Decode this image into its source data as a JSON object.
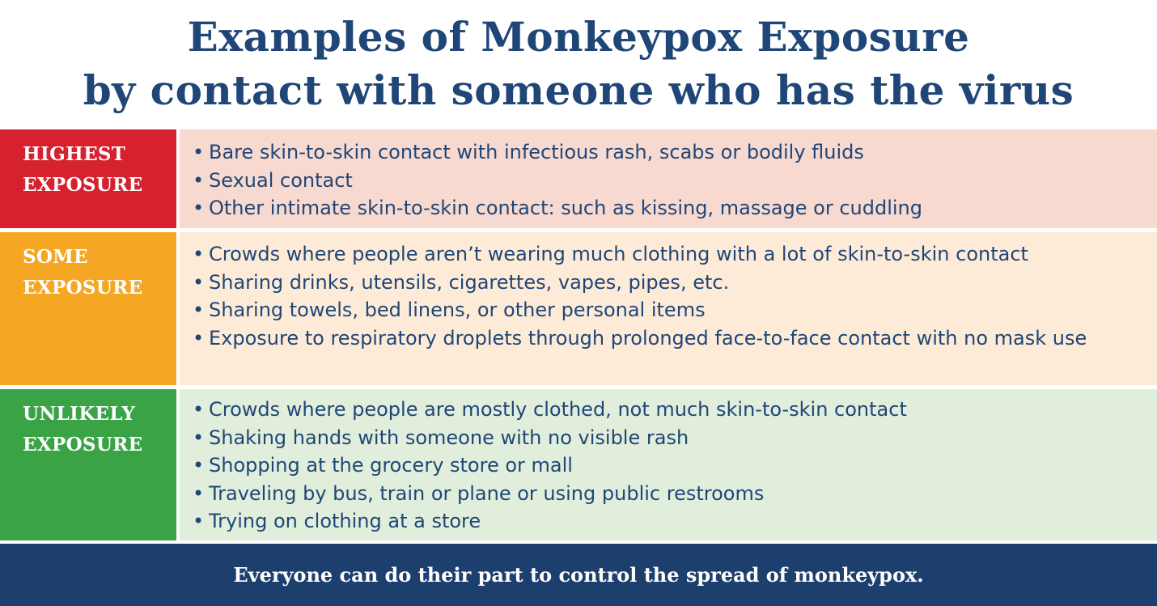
{
  "title": {
    "line1": "Examples of Monkeypox Exposure",
    "line2": "by contact with someone who has the virus"
  },
  "colors": {
    "title": "#1f4677",
    "highest_label": "#d6212f",
    "highest_body": "#f7d9cf",
    "some_label": "#f5a623",
    "some_body": "#fdebd7",
    "unlikely_label": "#3aa346",
    "unlikely_body": "#e1eedb",
    "footer": "#1d3f6e"
  },
  "rows": [
    {
      "label_line1": "HIGHEST",
      "label_line2": "EXPOSURE",
      "items": [
        "Bare skin-to-skin contact with infectious rash, scabs or bodily fluids",
        "Sexual contact",
        "Other intimate skin-to-skin contact: such as kissing, massage or cuddling"
      ]
    },
    {
      "label_line1": "SOME",
      "label_line2": "EXPOSURE",
      "items": [
        "Crowds where people aren’t wearing much clothing with a lot of skin-to-skin contact",
        "Sharing drinks, utensils, cigarettes, vapes, pipes, etc.",
        "Sharing towels, bed linens, or other personal items",
        "Exposure to respiratory droplets through prolonged face-to-face contact with no mask use"
      ]
    },
    {
      "label_line1": "UNLIKELY",
      "label_line2": "EXPOSURE",
      "items": [
        "Crowds where people are mostly clothed, not much skin-to-skin contact",
        "Shaking hands with someone with no visible rash",
        "Shopping at the grocery store or mall",
        "Traveling by bus, train or plane or using public restrooms",
        "Trying on clothing at a store"
      ]
    }
  ],
  "footer": "Everyone can do their part to control the spread of monkeypox."
}
